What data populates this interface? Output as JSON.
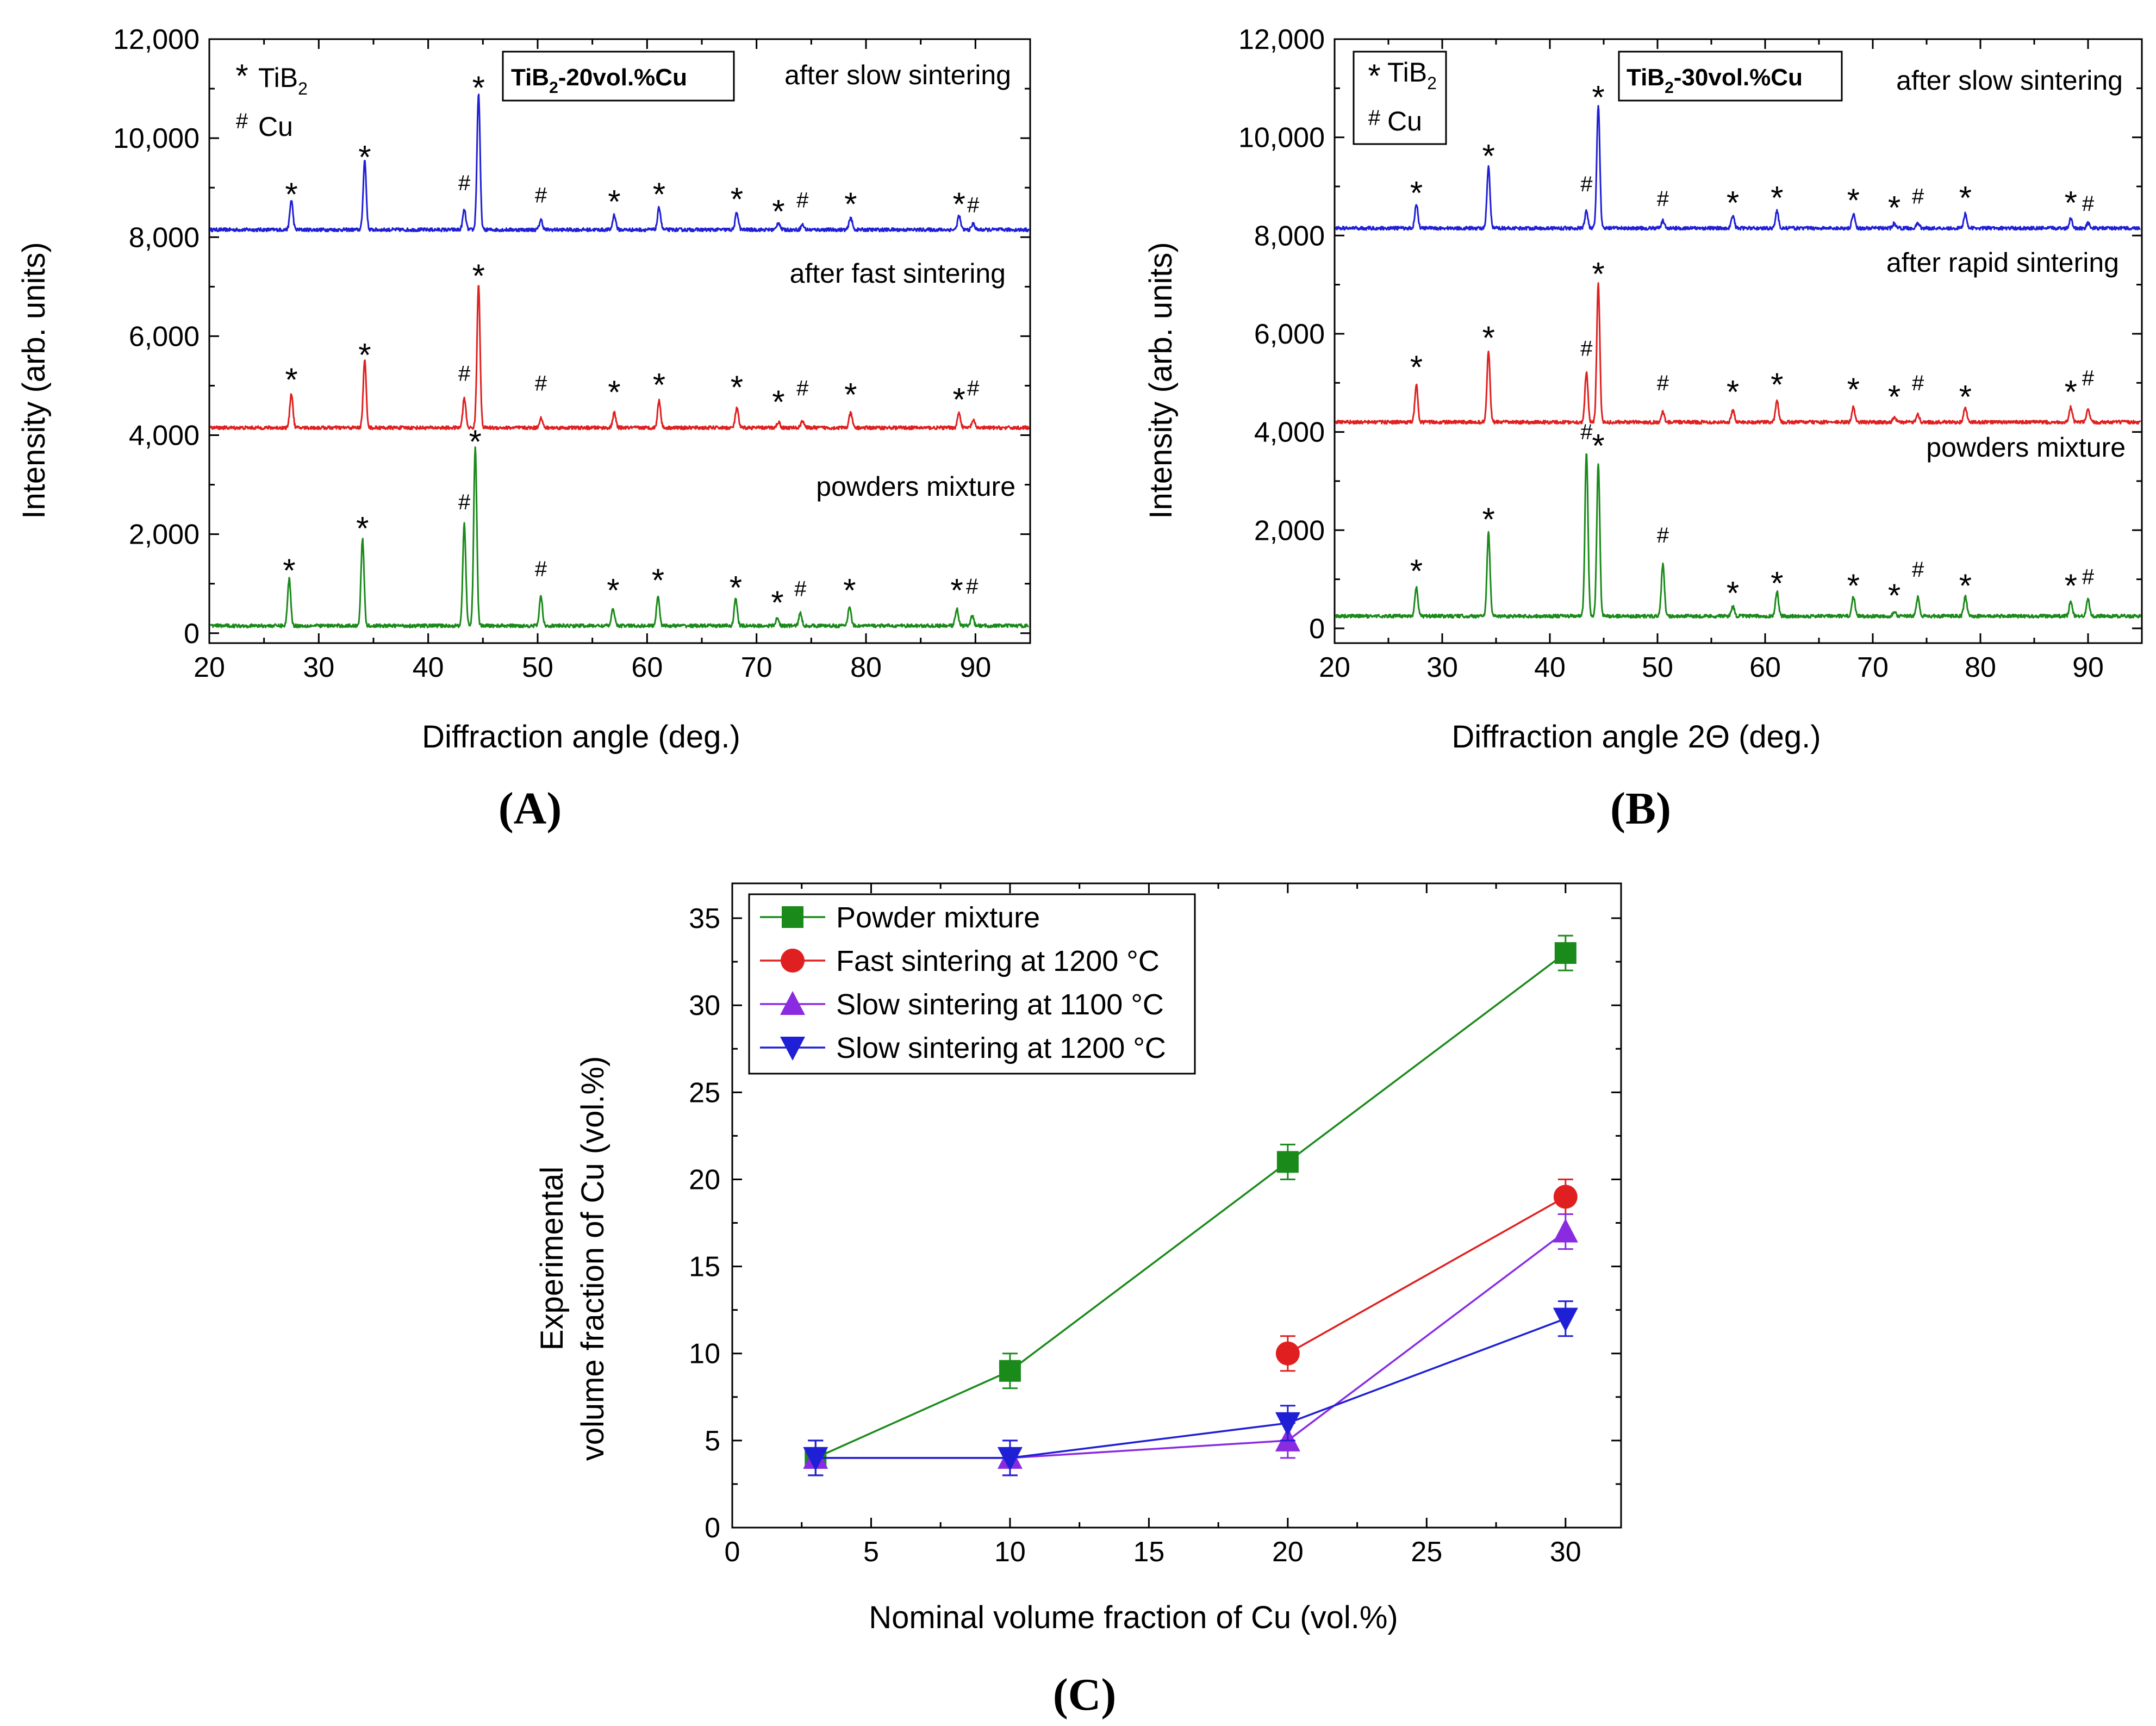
{
  "figure": {
    "panel_labels": [
      "(A)",
      "(B)",
      "(C)"
    ]
  },
  "chart_data": [
    {
      "id": "A",
      "type": "line",
      "title": "",
      "xlabel": "Diffraction angle (deg.)",
      "ylabel": "Intensity (arb. units)",
      "xlim": [
        20,
        95
      ],
      "ylim": [
        -200,
        12000
      ],
      "xticks": [
        20,
        30,
        40,
        50,
        60,
        70,
        80,
        90
      ],
      "yticks": [
        0,
        2000,
        4000,
        6000,
        8000,
        10000,
        12000
      ],
      "ytick_labels": [
        "0",
        "2,000",
        "4,000",
        "6,000",
        "8,000",
        "10,000",
        "12,000"
      ],
      "sample_label_prefix": "TiB",
      "sample_label_sub": "2",
      "sample_label_suffix": "-20vol.%Cu",
      "legend": [
        {
          "symbol": "*",
          "prefix": "TiB",
          "sub": "2"
        },
        {
          "symbol": "#",
          "prefix": "Cu",
          "sub": ""
        }
      ],
      "series": [
        {
          "name": "after slow sintering",
          "color": "#1f1fd6",
          "baseline": 8150,
          "peaks": [
            [
              27.5,
              600
            ],
            [
              34.2,
              1400
            ],
            [
              43.3,
              400
            ],
            [
              44.6,
              2750
            ],
            [
              50.3,
              200
            ],
            [
              57.0,
              300
            ],
            [
              61.1,
              450
            ],
            [
              68.2,
              350
            ],
            [
              72.0,
              150
            ],
            [
              74.2,
              100
            ],
            [
              78.6,
              250
            ],
            [
              88.5,
              280
            ],
            [
              89.8,
              120
            ]
          ],
          "markers": [
            [
              27.5,
              "*",
              8950
            ],
            [
              34.2,
              "*",
              9700
            ],
            [
              43.3,
              "#",
              8950
            ],
            [
              44.6,
              "*",
              11100
            ],
            [
              50.3,
              "#",
              8700
            ],
            [
              57.0,
              "*",
              8800
            ],
            [
              61.1,
              "*",
              8950
            ],
            [
              68.2,
              "*",
              8850
            ],
            [
              72.0,
              "*",
              8600
            ],
            [
              74.2,
              "#",
              8600
            ],
            [
              78.6,
              "*",
              8750
            ],
            [
              88.5,
              "*",
              8750
            ],
            [
              89.8,
              "#",
              8500
            ]
          ]
        },
        {
          "name": "after fast sintering",
          "color": "#e02020",
          "baseline": 4150,
          "peaks": [
            [
              27.5,
              700
            ],
            [
              34.2,
              1350
            ],
            [
              43.3,
              600
            ],
            [
              44.6,
              2900
            ],
            [
              50.3,
              200
            ],
            [
              57.0,
              300
            ],
            [
              61.1,
              550
            ],
            [
              68.2,
              400
            ],
            [
              72.0,
              120
            ],
            [
              74.2,
              150
            ],
            [
              78.6,
              300
            ],
            [
              88.5,
              300
            ],
            [
              89.8,
              150
            ]
          ],
          "markers": [
            [
              27.5,
              "*",
              5200
            ],
            [
              34.2,
              "*",
              5700
            ],
            [
              43.3,
              "#",
              5100
            ],
            [
              44.6,
              "*",
              7300
            ],
            [
              50.3,
              "#",
              4900
            ],
            [
              57.0,
              "*",
              4950
            ],
            [
              61.1,
              "*",
              5100
            ],
            [
              68.2,
              "*",
              5050
            ],
            [
              72.0,
              "*",
              4750
            ],
            [
              74.2,
              "#",
              4800
            ],
            [
              78.6,
              "*",
              4900
            ],
            [
              88.5,
              "*",
              4800
            ],
            [
              89.8,
              "#",
              4800
            ]
          ]
        },
        {
          "name": "powders mixture",
          "color": "#1a8a1a",
          "baseline": 150,
          "peaks": [
            [
              27.3,
              950
            ],
            [
              34.0,
              1750
            ],
            [
              43.3,
              2050
            ],
            [
              44.3,
              3600
            ],
            [
              50.3,
              600
            ],
            [
              56.9,
              350
            ],
            [
              61.0,
              600
            ],
            [
              68.1,
              550
            ],
            [
              71.9,
              150
            ],
            [
              74.0,
              250
            ],
            [
              78.5,
              400
            ],
            [
              88.3,
              350
            ],
            [
              89.7,
              200
            ]
          ],
          "markers": [
            [
              27.3,
              "*",
              1350
            ],
            [
              34.0,
              "*",
              2200
            ],
            [
              43.3,
              "#",
              2500
            ],
            [
              44.3,
              "*",
              3950
            ],
            [
              50.3,
              "#",
              1150
            ],
            [
              56.9,
              "*",
              950
            ],
            [
              61.0,
              "*",
              1150
            ],
            [
              68.1,
              "*",
              1000
            ],
            [
              71.9,
              "*",
              700
            ],
            [
              74.0,
              "#",
              750
            ],
            [
              78.5,
              "*",
              950
            ],
            [
              88.3,
              "*",
              950
            ],
            [
              89.7,
              "#",
              800
            ]
          ]
        }
      ]
    },
    {
      "id": "B",
      "type": "line",
      "title": "",
      "xlabel": "Diffraction angle 2Θ (deg.)",
      "ylabel": "Intensity (arb. units)",
      "xlim": [
        20,
        95
      ],
      "ylim": [
        -300,
        12000
      ],
      "xticks": [
        20,
        30,
        40,
        50,
        60,
        70,
        80,
        90
      ],
      "yticks": [
        0,
        2000,
        4000,
        6000,
        8000,
        10000,
        12000
      ],
      "ytick_labels": [
        "0",
        "2,000",
        "4,000",
        "6,000",
        "8,000",
        "10,000",
        "12,000"
      ],
      "sample_label_prefix": "TiB",
      "sample_label_sub": "2",
      "sample_label_suffix": "-30vol.%Cu",
      "legend": [
        {
          "symbol": "*",
          "prefix": "TiB",
          "sub": "2"
        },
        {
          "symbol": "#",
          "prefix": "Cu",
          "sub": ""
        }
      ],
      "series": [
        {
          "name": "after slow sintering",
          "color": "#1f1fd6",
          "baseline": 8150,
          "peaks": [
            [
              27.6,
              500
            ],
            [
              34.3,
              1250
            ],
            [
              43.4,
              350
            ],
            [
              44.5,
              2500
            ],
            [
              50.5,
              150
            ],
            [
              57.0,
              250
            ],
            [
              61.1,
              350
            ],
            [
              68.2,
              300
            ],
            [
              72.0,
              100
            ],
            [
              74.2,
              100
            ],
            [
              78.6,
              300
            ],
            [
              88.4,
              200
            ],
            [
              90.0,
              100
            ]
          ],
          "markers": [
            [
              27.6,
              "*",
              8950
            ],
            [
              34.3,
              "*",
              9700
            ],
            [
              43.4,
              "#",
              8900
            ],
            [
              44.5,
              "*",
              10900
            ],
            [
              50.5,
              "#",
              8600
            ],
            [
              57.0,
              "*",
              8750
            ],
            [
              61.1,
              "*",
              8850
            ],
            [
              68.2,
              "*",
              8800
            ],
            [
              72.0,
              "*",
              8650
            ],
            [
              74.2,
              "#",
              8650
            ],
            [
              78.6,
              "*",
              8850
            ],
            [
              88.4,
              "*",
              8750
            ],
            [
              90.0,
              "#",
              8500
            ]
          ]
        },
        {
          "name": "after rapid sintering",
          "color": "#e02020",
          "baseline": 4200,
          "peaks": [
            [
              27.6,
              750
            ],
            [
              34.3,
              1450
            ],
            [
              43.4,
              1000
            ],
            [
              44.5,
              2800
            ],
            [
              50.5,
              200
            ],
            [
              57.0,
              250
            ],
            [
              61.1,
              450
            ],
            [
              68.2,
              300
            ],
            [
              72.0,
              100
            ],
            [
              74.2,
              150
            ],
            [
              78.6,
              300
            ],
            [
              88.4,
              300
            ],
            [
              90.0,
              250
            ]
          ],
          "markers": [
            [
              27.6,
              "*",
              5400
            ],
            [
              34.3,
              "*",
              6000
            ],
            [
              43.4,
              "#",
              5550
            ],
            [
              44.5,
              "*",
              7300
            ],
            [
              50.5,
              "#",
              4850
            ],
            [
              57.0,
              "*",
              4900
            ],
            [
              61.1,
              "*",
              5050
            ],
            [
              68.2,
              "*",
              4950
            ],
            [
              72.0,
              "*",
              4800
            ],
            [
              74.2,
              "#",
              4850
            ],
            [
              78.6,
              "*",
              4800
            ],
            [
              88.4,
              "*",
              4900
            ],
            [
              90.0,
              "#",
              4950
            ]
          ]
        },
        {
          "name": "powders mixture",
          "color": "#1a8a1a",
          "baseline": 250,
          "peaks": [
            [
              27.6,
              600
            ],
            [
              34.3,
              1700
            ],
            [
              43.4,
              3350
            ],
            [
              44.5,
              3100
            ],
            [
              50.5,
              1050
            ],
            [
              57.0,
              200
            ],
            [
              61.1,
              500
            ],
            [
              68.2,
              400
            ],
            [
              72.0,
              100
            ],
            [
              74.2,
              400
            ],
            [
              78.6,
              400
            ],
            [
              88.4,
              300
            ],
            [
              90.0,
              350
            ]
          ],
          "markers": [
            [
              27.6,
              "*",
              1250
            ],
            [
              34.3,
              "*",
              2300
            ],
            [
              43.4,
              "#",
              3850
            ],
            [
              44.5,
              "*",
              3800
            ],
            [
              50.5,
              "#",
              1750
            ],
            [
              57.0,
              "*",
              800
            ],
            [
              61.1,
              "*",
              1000
            ],
            [
              68.2,
              "*",
              950
            ],
            [
              72.0,
              "*",
              750
            ],
            [
              74.2,
              "#",
              1050
            ],
            [
              78.6,
              "*",
              950
            ],
            [
              88.4,
              "*",
              950
            ],
            [
              90.0,
              "#",
              900
            ]
          ]
        }
      ]
    },
    {
      "id": "C",
      "type": "line",
      "title": "",
      "xlabel": "Nominal volume fraction of Cu (vol.%)",
      "ylabel_lines": [
        "Experimental",
        "volume fraction of Cu (vol.%)"
      ],
      "xlim": [
        0,
        32
      ],
      "ylim": [
        0,
        37
      ],
      "xticks": [
        0,
        5,
        10,
        15,
        20,
        25,
        30
      ],
      "yticks": [
        0,
        5,
        10,
        15,
        20,
        25,
        30,
        35
      ],
      "series": [
        {
          "name": "Powder mixture",
          "color": "#1a8a1a",
          "marker": "square",
          "x": [
            3,
            10,
            20,
            30
          ],
          "y": [
            4,
            9,
            21,
            33
          ],
          "err": [
            1,
            1,
            1,
            1
          ]
        },
        {
          "name": "Fast sintering at 1200 °C",
          "color": "#e02020",
          "marker": "circle",
          "x": [
            20,
            30
          ],
          "y": [
            10,
            19
          ],
          "err": [
            1,
            1
          ]
        },
        {
          "name": "Slow sintering at 1100 °C",
          "color": "#8a2be2",
          "marker": "triangle-up",
          "x": [
            3,
            10,
            20,
            30
          ],
          "y": [
            4,
            4,
            5,
            17
          ],
          "err": [
            1,
            1,
            1,
            1
          ]
        },
        {
          "name": "Slow sintering at 1200 °C",
          "color": "#1f1fd6",
          "marker": "triangle-down",
          "x": [
            3,
            10,
            20,
            30
          ],
          "y": [
            4,
            4,
            6,
            12
          ],
          "err": [
            1,
            1,
            1,
            1
          ]
        }
      ]
    }
  ]
}
